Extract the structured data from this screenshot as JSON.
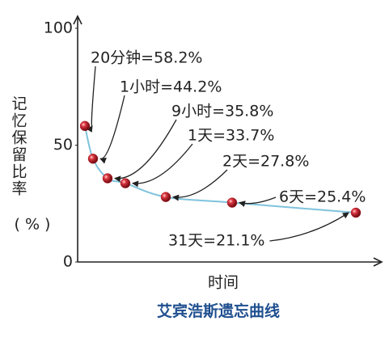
{
  "chart_data": {
    "type": "line",
    "title": "艾宾浩斯遗忘曲线",
    "x_label": "时间",
    "y_label": "记忆保留比率",
    "y_unit": "( % )",
    "values": [
      58.2,
      44.2,
      35.8,
      33.7,
      27.8,
      25.4,
      21.1
    ],
    "value_labels": [
      "20分钟=58.2%",
      "1小时=44.2%",
      "9小时=35.8%",
      "1天=33.7%",
      "2天=27.8%",
      "6天=25.4%",
      "31天=21.1%"
    ],
    "ylim": [
      0,
      100
    ],
    "yticks": [
      0,
      50,
      100
    ],
    "color": "#7fc3dd",
    "marker_color": "#b0202a"
  }
}
